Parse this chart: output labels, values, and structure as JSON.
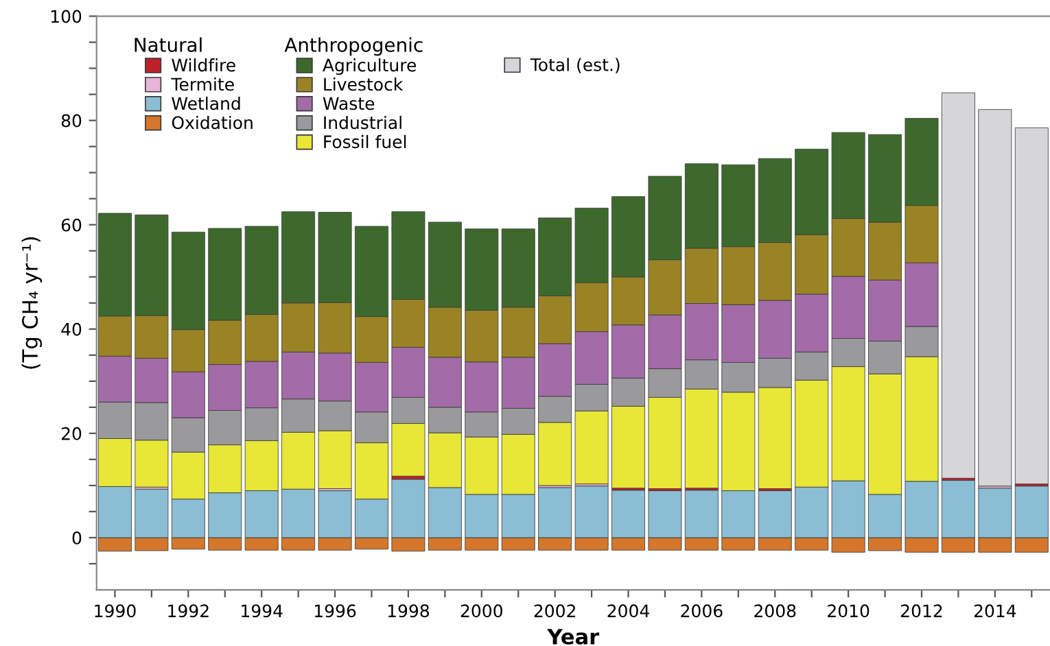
{
  "chart_data": {
    "type": "bar",
    "stacked": true,
    "x": [
      1990,
      1991,
      1992,
      1993,
      1994,
      1995,
      1996,
      1997,
      1998,
      1999,
      2000,
      2001,
      2002,
      2003,
      2004,
      2005,
      2006,
      2007,
      2008,
      2009,
      2010,
      2011,
      2012,
      2013,
      2014,
      2015
    ],
    "xlabel": "Year",
    "ylabel": "(Tg CH₄ yr⁻¹)",
    "xlim": [
      1989.5,
      2015.5
    ],
    "xticks": [
      {
        "value": 1990,
        "label": "1990"
      },
      {
        "value": 1991,
        "label": null
      },
      {
        "value": 1992,
        "label": "1992"
      },
      {
        "value": 1993,
        "label": null
      },
      {
        "value": 1994,
        "label": "1994"
      },
      {
        "value": 1995,
        "label": null
      },
      {
        "value": 1996,
        "label": "1996"
      },
      {
        "value": 1997,
        "label": null
      },
      {
        "value": 1998,
        "label": "1998"
      },
      {
        "value": 1999,
        "label": null
      },
      {
        "value": 2000,
        "label": "2000"
      },
      {
        "value": 2001,
        "label": null
      },
      {
        "value": 2002,
        "label": "2002"
      },
      {
        "value": 2003,
        "label": null
      },
      {
        "value": 2004,
        "label": "2004"
      },
      {
        "value": 2005,
        "label": null
      },
      {
        "value": 2006,
        "label": "2006"
      },
      {
        "value": 2007,
        "label": null
      },
      {
        "value": 2008,
        "label": "2008"
      },
      {
        "value": 2009,
        "label": null
      },
      {
        "value": 2010,
        "label": "2010"
      },
      {
        "value": 2011,
        "label": null
      },
      {
        "value": 2012,
        "label": "2012"
      },
      {
        "value": 2013,
        "label": null
      },
      {
        "value": 2014,
        "label": "2014"
      },
      {
        "value": 2015,
        "label": null
      }
    ],
    "ylim": [
      -10,
      100
    ],
    "yticks": [
      {
        "value": -5,
        "label": null
      },
      0,
      {
        "value": 5,
        "label": null
      },
      {
        "value": 10,
        "label": null
      },
      {
        "value": 15,
        "label": null
      },
      20,
      {
        "value": 25,
        "label": null
      },
      {
        "value": 30,
        "label": null
      },
      {
        "value": 35,
        "label": null
      },
      40,
      {
        "value": 45,
        "label": null
      },
      {
        "value": 50,
        "label": null
      },
      {
        "value": 55,
        "label": null
      },
      60,
      {
        "value": 65,
        "label": null
      },
      {
        "value": 70,
        "label": null
      },
      {
        "value": 75,
        "label": null
      },
      80,
      {
        "value": 85,
        "label": null
      },
      {
        "value": 90,
        "label": null
      },
      {
        "value": 95,
        "label": null
      },
      100
    ],
    "legend": "top left",
    "grid": false,
    "annotations": [
      "Natural",
      "Anthropogenic"
    ],
    "series": [
      {
        "name": "Oxidation",
        "color": "#d4772c",
        "values": [
          -2.6,
          -2.5,
          -2.2,
          -2.4,
          -2.4,
          -2.4,
          -2.4,
          -2.2,
          -2.6,
          -2.4,
          -2.4,
          -2.4,
          -2.4,
          -2.4,
          -2.4,
          -2.4,
          -2.4,
          -2.4,
          -2.4,
          -2.4,
          -2.8,
          -2.5,
          -2.8,
          -2.8,
          -2.8,
          -2.8
        ]
      },
      {
        "name": "Wetland",
        "color": "#8bbdd4",
        "values": [
          9.8,
          9.3,
          7.4,
          8.6,
          9.0,
          9.3,
          9.0,
          7.4,
          11.2,
          9.6,
          8.3,
          8.3,
          9.6,
          9.9,
          9.1,
          9.0,
          9.1,
          9.0,
          9.0,
          9.7,
          10.9,
          8.3,
          10.8,
          11.0,
          9.5,
          9.9
        ]
      },
      {
        "name": "Termite",
        "color": "#e8b4d8",
        "values": [
          null,
          0.4,
          null,
          null,
          null,
          null,
          0.4,
          null,
          null,
          null,
          null,
          null,
          0.4,
          0.4,
          null,
          null,
          null,
          null,
          null,
          null,
          null,
          null,
          null,
          null,
          0.4,
          null
        ]
      },
      {
        "name": "Wildfire",
        "color": "#c0202a",
        "values": [
          null,
          null,
          null,
          null,
          null,
          null,
          null,
          null,
          0.6,
          null,
          null,
          null,
          null,
          null,
          0.4,
          0.4,
          0.4,
          null,
          0.4,
          null,
          null,
          null,
          null,
          0.4,
          null,
          0.4
        ]
      },
      {
        "name": "Fossil fuel",
        "color": "#e8e636",
        "values": [
          9.2,
          9.0,
          9.0,
          9.2,
          9.6,
          10.9,
          11.1,
          10.8,
          10.1,
          10.5,
          11.0,
          11.5,
          12.1,
          14.0,
          15.7,
          17.5,
          19.0,
          18.9,
          19.4,
          20.5,
          21.9,
          23.1,
          23.9,
          null,
          null,
          null
        ]
      },
      {
        "name": "Industrial",
        "color": "#9a9a9c",
        "values": [
          7.0,
          7.2,
          6.6,
          6.6,
          6.3,
          6.4,
          5.7,
          5.9,
          5.0,
          4.9,
          4.8,
          5.0,
          5.0,
          5.1,
          5.4,
          5.5,
          5.6,
          5.7,
          5.6,
          5.4,
          5.4,
          6.3,
          5.8,
          null,
          null,
          null
        ]
      },
      {
        "name": "Waste",
        "color": "#a36ba8",
        "values": [
          8.8,
          8.5,
          8.8,
          8.8,
          8.9,
          9.0,
          9.2,
          9.5,
          9.6,
          9.6,
          9.6,
          9.8,
          10.1,
          10.1,
          10.2,
          10.3,
          10.8,
          11.1,
          11.1,
          11.1,
          11.9,
          11.7,
          12.2,
          null,
          null,
          null
        ]
      },
      {
        "name": "Livestock",
        "color": "#9a8325",
        "values": [
          7.7,
          8.2,
          8.1,
          8.5,
          9.0,
          9.4,
          9.7,
          8.8,
          9.2,
          9.6,
          9.9,
          9.6,
          9.2,
          9.4,
          9.2,
          10.6,
          10.6,
          11.1,
          11.1,
          11.4,
          11.1,
          11.1,
          11.0,
          null,
          null,
          null
        ]
      },
      {
        "name": "Agriculture",
        "color": "#3d6a2c",
        "values": [
          19.7,
          19.3,
          18.7,
          17.6,
          16.9,
          17.5,
          17.3,
          17.3,
          16.8,
          16.3,
          15.6,
          15.0,
          14.9,
          14.3,
          15.4,
          16.0,
          16.2,
          15.7,
          16.1,
          16.4,
          16.5,
          16.8,
          16.7,
          null,
          null,
          null
        ]
      },
      {
        "name": "Total (est.)",
        "color": "#d6d6d8",
        "values": [
          null,
          null,
          null,
          null,
          null,
          null,
          null,
          null,
          null,
          null,
          null,
          null,
          null,
          null,
          null,
          null,
          null,
          null,
          null,
          null,
          null,
          null,
          null,
          73.9,
          72.2,
          68.3
        ]
      }
    ]
  }
}
